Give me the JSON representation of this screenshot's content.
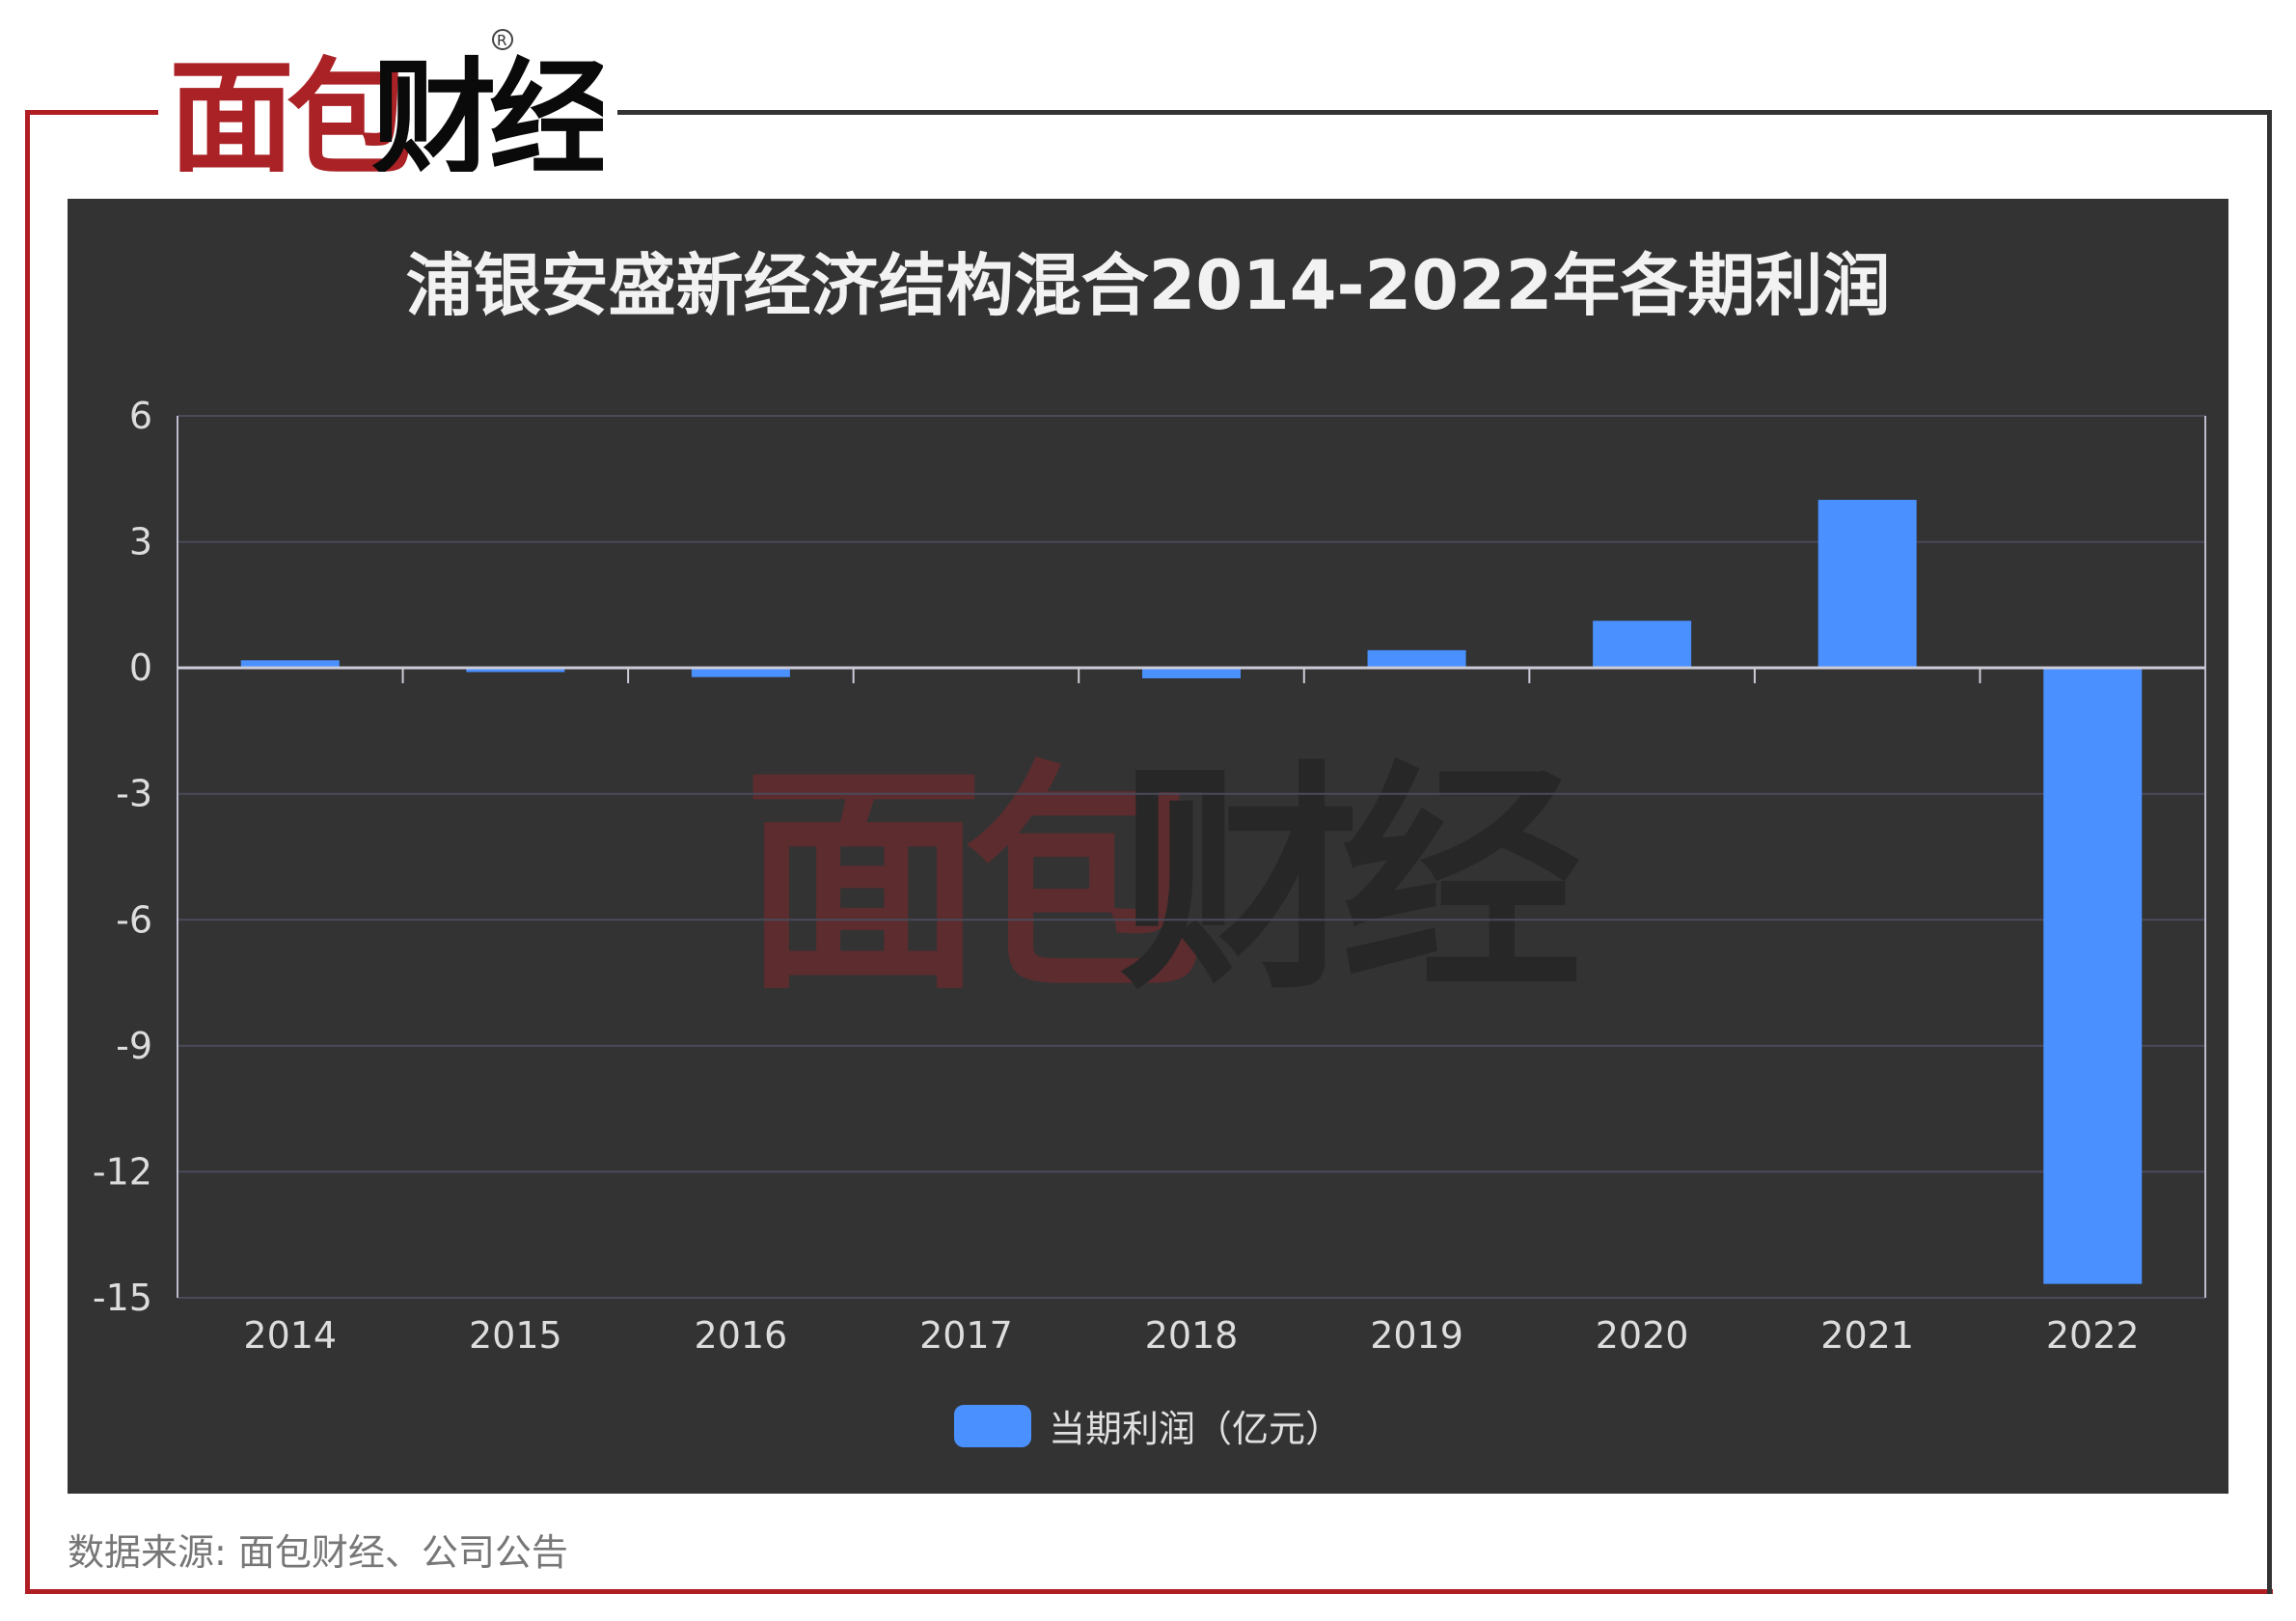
{
  "brand": {
    "logo_text": "面包财经",
    "registered": "®"
  },
  "footer": {
    "source": "数据来源: 面包财经、公司公告"
  },
  "colors": {
    "bar": "#4a90ff",
    "background": "#333333",
    "brand_red": "#b01e23"
  },
  "chart_data": {
    "type": "bar",
    "title": "浦银安盛新经济结构混合2014-2022年各期利润",
    "categories": [
      "2014",
      "2015",
      "2016",
      "2017",
      "2018",
      "2019",
      "2020",
      "2021",
      "2022"
    ],
    "series": [
      {
        "name": "当期利润（亿元）",
        "values": [
          0.18,
          -0.1,
          -0.22,
          0.02,
          -0.25,
          0.42,
          1.12,
          4.0,
          -14.67
        ]
      }
    ],
    "yticks": [
      "6",
      "3",
      "0",
      "-3",
      "-6",
      "-9",
      "-12",
      "-15"
    ],
    "ylim": [
      -15,
      6
    ],
    "grid": true,
    "legend_position": "bottom-center",
    "xlabel": "",
    "ylabel": ""
  }
}
